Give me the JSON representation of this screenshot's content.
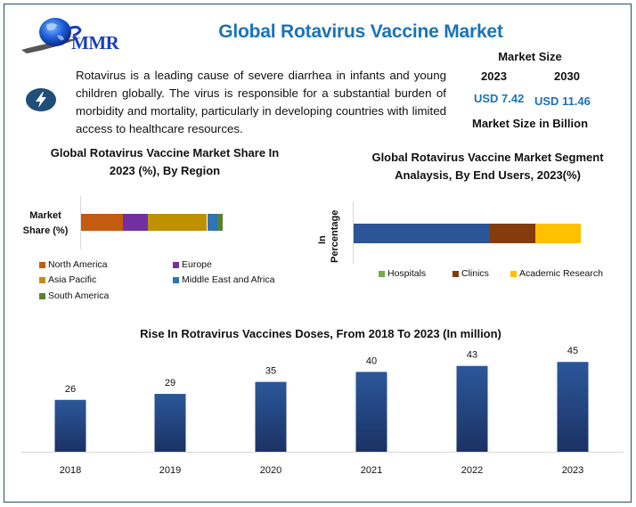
{
  "header": {
    "logo_text": "MMR",
    "title": "Global Rotavirus Vaccine Market"
  },
  "description": "Rotavirus is a leading cause of severe diarrhea in infants and young children globally. The virus is responsible for a substantial burden of morbidity and mortality, particularly in developing countries with limited access to healthcare resources.",
  "icons": {
    "logo": "globe-logo-icon",
    "bolt": "lightning-bolt-icon"
  },
  "market_size": {
    "label": "Market Size",
    "years": [
      "2023",
      "2030"
    ],
    "values": [
      "USD 7.42",
      "USD 11.46"
    ],
    "unit_label": "Market Size in Billion"
  },
  "colors": {
    "title_blue": "#1a73b8",
    "frame": "#1f4e6b",
    "bar_top": "#2b579a",
    "bar_bottom": "#1b3264"
  },
  "chart_data": [
    {
      "type": "bar",
      "orientation": "horizontal-stacked",
      "title": "Global Rotavirus Vaccine Market Share In 2023 (%), By Region",
      "ylabel": "Market Share (%)",
      "categories": [
        "Market Share (%)"
      ],
      "series": [
        {
          "name": "North America",
          "values": [
            29.5
          ],
          "color": "#c55a11"
        },
        {
          "name": "Europe",
          "values": [
            17.5
          ],
          "color": "#7030a0"
        },
        {
          "name": "Asia Pacific",
          "values": [
            42
          ],
          "color": "#bf9000"
        },
        {
          "name": "Middle East and Africa",
          "values": [
            7.5
          ],
          "color": "#2e75b6"
        },
        {
          "name": "South America",
          "values": [
            3.5
          ],
          "color": "#548235"
        }
      ],
      "xlim": [
        0,
        160
      ],
      "legend": "bottom",
      "grid": false
    },
    {
      "type": "bar",
      "orientation": "horizontal-stacked",
      "title": "Global Rotavirus Vaccine Market Segment Analaysis, By End Users, 2023(%)",
      "ylabel": "In Percentage",
      "categories": [
        "In Percentage"
      ],
      "series": [
        {
          "name": "Hospitals",
          "values": [
            60
          ],
          "color": "#2b5597",
          "legend_color": "#70ad47"
        },
        {
          "name": "Clinics",
          "values": [
            20
          ],
          "color": "#843c0c"
        },
        {
          "name": "Academic Research",
          "values": [
            20
          ],
          "color": "#ffc000"
        }
      ],
      "xlim": [
        0,
        108
      ],
      "legend": "bottom",
      "grid": false
    },
    {
      "type": "bar",
      "title": "Rise In Rotravirus Vaccines Doses, From 2018 To 2023 (In million)",
      "xlabel": "",
      "ylabel": "",
      "categories": [
        "2018",
        "2019",
        "2020",
        "2021",
        "2022",
        "2023"
      ],
      "values": [
        26,
        29,
        35,
        40,
        43,
        45
      ],
      "data_labels": [
        "26",
        "29",
        "35",
        "40",
        "43",
        "45"
      ],
      "ylim": [
        0,
        55
      ],
      "grid": false,
      "legend": "none"
    }
  ]
}
